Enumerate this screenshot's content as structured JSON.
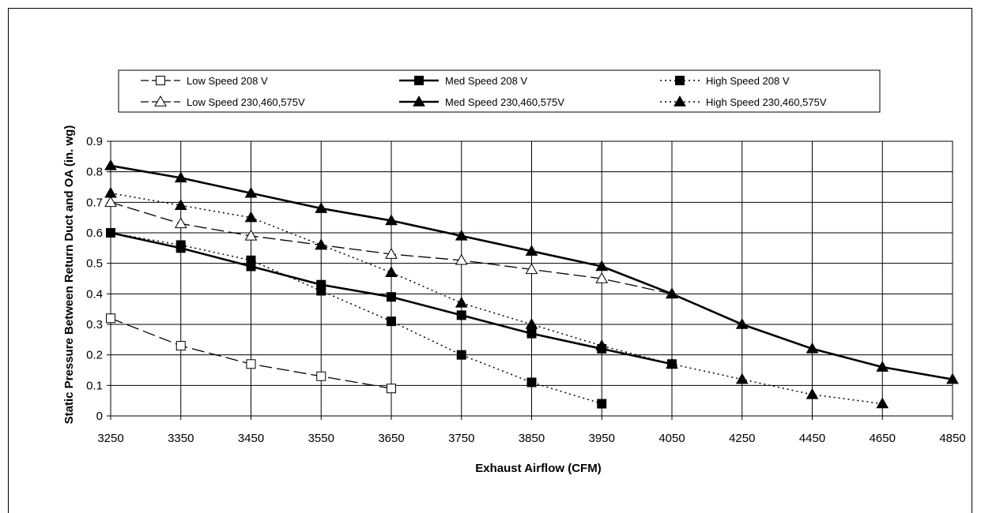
{
  "chart_data": {
    "type": "line",
    "xlabel": "Exhaust Airflow (CFM)",
    "ylabel": "Static Pressure Between Return Duct and OA (in. wg)",
    "categories": [
      "3250",
      "3350",
      "3450",
      "3550",
      "3650",
      "3750",
      "3850",
      "3950",
      "4050",
      "4250",
      "4450",
      "4650",
      "4850"
    ],
    "y_ticks": [
      "0",
      "0.1",
      "0.2",
      "0.3",
      "0.4",
      "0.5",
      "0.6",
      "0.7",
      "0.8",
      "0.9"
    ],
    "ylim": [
      0,
      0.9
    ],
    "grid": true,
    "legend_position": "top",
    "series": [
      {
        "name": "Low Speed 208 V",
        "marker": "square-open",
        "dash": "long-dash",
        "values": [
          0.32,
          0.23,
          0.17,
          0.13,
          0.09,
          null,
          null,
          null,
          null,
          null,
          null,
          null,
          null
        ]
      },
      {
        "name": "Med Speed 208 V",
        "marker": "square-filled",
        "dash": "solid",
        "values": [
          0.6,
          0.55,
          0.49,
          0.43,
          0.39,
          0.33,
          0.27,
          0.22,
          0.17,
          null,
          null,
          null,
          null
        ]
      },
      {
        "name": "High Speed 208 V",
        "marker": "square-filled",
        "dash": "dotted",
        "values": [
          0.6,
          0.56,
          0.51,
          0.41,
          0.31,
          0.2,
          0.11,
          0.04,
          null,
          null,
          null,
          null,
          null
        ]
      },
      {
        "name": "Low Speed 230,460,575V",
        "marker": "triangle-open",
        "dash": "long-dash",
        "values": [
          0.7,
          0.63,
          0.59,
          0.56,
          0.53,
          0.51,
          0.48,
          0.45,
          0.4,
          null,
          null,
          null,
          null
        ]
      },
      {
        "name": "Med Speed 230,460,575V",
        "marker": "triangle-filled",
        "dash": "solid",
        "values": [
          0.82,
          0.78,
          0.73,
          0.68,
          0.64,
          0.59,
          0.54,
          0.49,
          0.4,
          0.3,
          0.22,
          0.16,
          0.12
        ]
      },
      {
        "name": "High Speed 230,460,575V",
        "marker": "triangle-filled",
        "dash": "dotted",
        "values": [
          0.73,
          0.69,
          0.65,
          0.56,
          0.47,
          0.37,
          0.3,
          0.23,
          0.17,
          0.12,
          0.07,
          0.04,
          null
        ]
      }
    ]
  }
}
